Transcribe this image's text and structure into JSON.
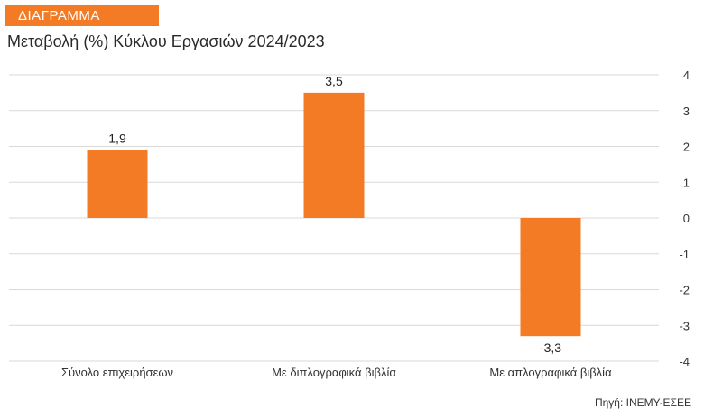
{
  "badge": {
    "label": "ΔΙΑΓΡΑΜΜΑ"
  },
  "header": {
    "title": "Μεταβολή (%) Κύκλου Εργασιών 2024/2023"
  },
  "footer": {
    "source": "Πηγή: ΙΝΕΜΥ-ΕΣΕΕ"
  },
  "colors": {
    "accent": "#f47b25",
    "bar": "#f47b25",
    "grid": "#d9d9d9"
  },
  "chart_data": {
    "type": "bar",
    "title": "Μεταβολή (%) Κύκλου Εργασιών 2024/2023",
    "categories": [
      "Σύνολο επιχειρήσεων",
      "Με διπλογραφικά βιβλία",
      "Με απλογραφικά βιβλία"
    ],
    "values": [
      1.9,
      3.5,
      -3.3
    ],
    "value_labels": [
      "1,9",
      "3,5",
      "-3,3"
    ],
    "ylim": [
      -4,
      4
    ],
    "yticks": [
      4,
      3,
      2,
      1,
      0,
      -1,
      -2,
      -3,
      -4
    ],
    "ytick_labels": [
      "4",
      "3",
      "2",
      "1",
      "0",
      "-1",
      "-2",
      "-3",
      "-4"
    ],
    "y_axis_side": "right",
    "grid": true,
    "legend": false
  }
}
